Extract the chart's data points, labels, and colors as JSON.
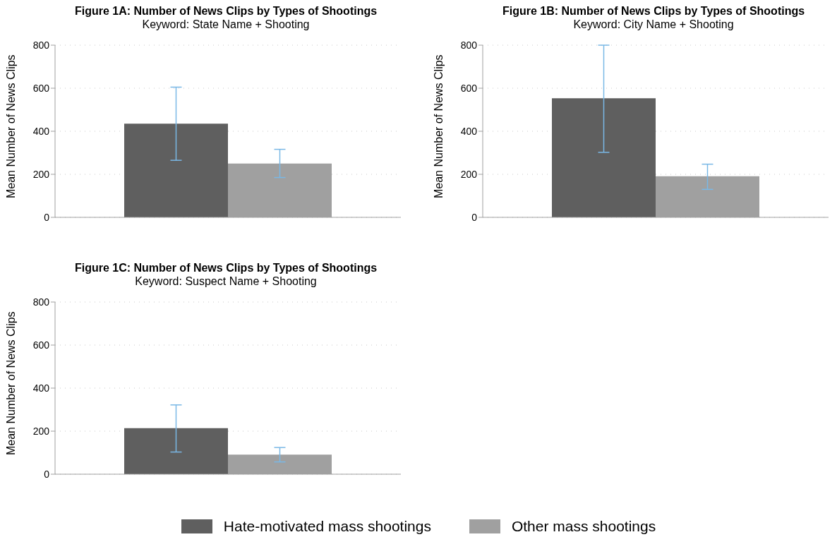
{
  "chart_data": [
    {
      "type": "bar",
      "title": "Figure 1A: Number of News Clips by Types of Shootings",
      "subtitle": "Keyword: State Name + Shooting",
      "ylabel": "Mean Number of News Clips",
      "categories": [
        null
      ],
      "ylim": [
        0,
        800
      ],
      "yticks": [
        0,
        200,
        400,
        600,
        800
      ],
      "grid": "y",
      "tick_labels": "y",
      "legend": false,
      "series": [
        {
          "color": "#5f5f5f",
          "values": [
            435
          ],
          "errors": [
            [
              265,
              605
            ]
          ]
        },
        {
          "color": "#a0a0a0",
          "values": [
            250
          ],
          "errors": [
            [
              185,
              316
            ]
          ]
        }
      ]
    },
    {
      "type": "bar",
      "title": "Figure 1B: Number of News Clips by Types of Shootings",
      "subtitle": "Keyword: City Name + Shooting",
      "ylabel": "Mean Number of News Clips",
      "categories": [
        null
      ],
      "ylim": [
        0,
        800
      ],
      "yticks": [
        0,
        200,
        400,
        600,
        800
      ],
      "grid": "y",
      "tick_labels": "y",
      "legend": false,
      "series": [
        {
          "color": "#5f5f5f",
          "values": [
            553
          ],
          "errors": [
            [
              302,
              800
            ]
          ]
        },
        {
          "color": "#a0a0a0",
          "values": [
            191
          ],
          "errors": [
            [
              130,
              247
            ]
          ]
        }
      ]
    },
    {
      "type": "bar",
      "title": "Figure 1C: Number of News Clips by Types of Shootings",
      "subtitle": "Keyword: Suspect Name + Shooting",
      "ylabel": "Mean Number of News Clips",
      "categories": [
        null
      ],
      "ylim": [
        0,
        800
      ],
      "yticks": [
        0,
        200,
        400,
        600,
        800
      ],
      "grid": "y",
      "tick_labels": "y",
      "legend": "bottom",
      "series": [
        {
          "name": "Hate-motivated mass shootings",
          "color": "#5f5f5f",
          "values": [
            214
          ],
          "errors": [
            [
              103,
              322
            ]
          ]
        },
        {
          "name": "Other mass shootings",
          "color": "#a0a0a0",
          "values": [
            91
          ],
          "errors": [
            [
              57,
              124
            ]
          ]
        }
      ]
    }
  ]
}
